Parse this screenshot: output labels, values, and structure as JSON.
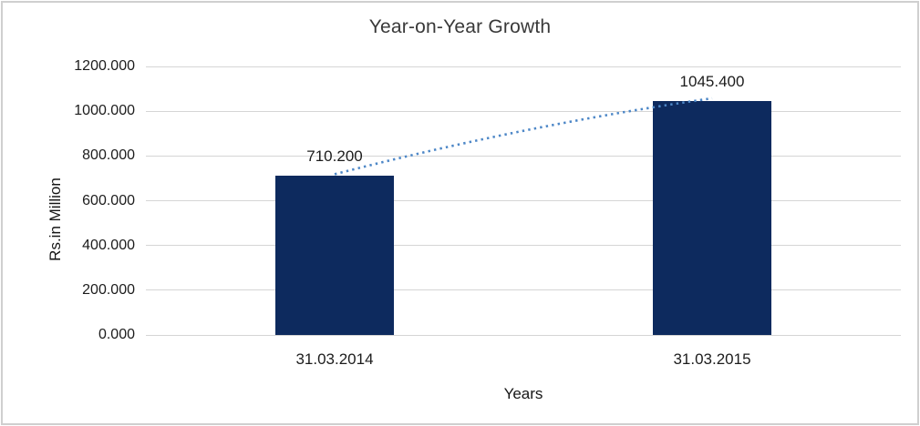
{
  "chart_data": {
    "type": "bar",
    "title": "Year-on-Year Growth",
    "xlabel": "Years",
    "ylabel": "Rs.in Million",
    "categories": [
      "31.03.2014",
      "31.03.2015"
    ],
    "values": [
      710.2,
      1045.4
    ],
    "value_labels": [
      "710.200",
      "1045.400"
    ],
    "ylim": [
      0,
      1200
    ],
    "ytick_step": 200,
    "ytick_labels": [
      "0.000",
      "200.000",
      "400.000",
      "600.000",
      "800.000",
      "1000.000",
      "1200.000"
    ],
    "grid": true,
    "legend": "none",
    "bar_color": "#0d2a5e",
    "gridline_color": "#d5d5d5",
    "trendline": {
      "style": "dotted",
      "color": "#4d87c7",
      "connects": "bar tops from 710.200 to 1045.400"
    }
  }
}
